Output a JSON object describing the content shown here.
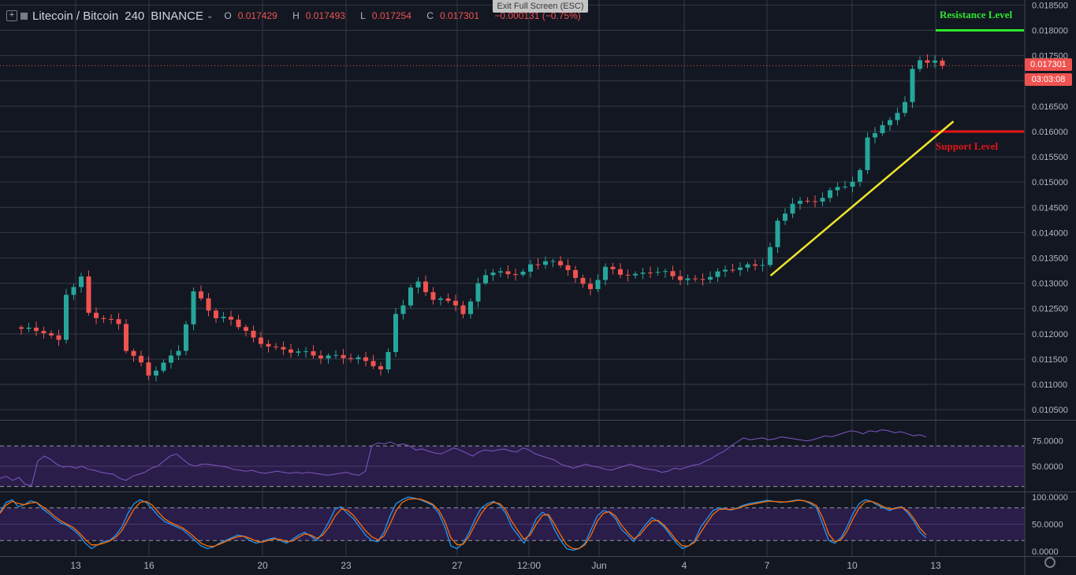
{
  "header": {
    "symbol": "Litecoin / Bitcoin",
    "interval": "240",
    "exchange": "BINANCE",
    "ohlc": [
      {
        "key": "O",
        "value": "0.017429"
      },
      {
        "key": "H",
        "value": "0.017493"
      },
      {
        "key": "L",
        "value": "0.017254"
      },
      {
        "key": "C",
        "value": "0.017301"
      }
    ],
    "change": "−0.000131 (−0.75%)"
  },
  "overlay": {
    "exit_fullscreen": "Exit Full Screen (ESC)"
  },
  "annotations": {
    "resistance": "Resistance Level",
    "support": "Support Level"
  },
  "price_badge": {
    "price": "0.017301",
    "countdown": "03:03:08"
  },
  "colors": {
    "background": "#131722",
    "grid": "#363a45",
    "up": "#26a69a",
    "down": "#ef5350",
    "trendline": "#f0e62b",
    "resistance": "#2ee62e",
    "support": "#e41515",
    "rsi": "#7e57c2",
    "rsi_band": "#2a1d4a",
    "stoch_k": "#2196f3",
    "stoch_d": "#ff6d00"
  },
  "chart_data": [
    {
      "type": "candlestick",
      "title": "Litecoin / Bitcoin",
      "ylim": [
        0.0103,
        0.0186
      ],
      "y_ticks": [
        "0.010500",
        "0.011000",
        "0.011500",
        "0.012000",
        "0.012500",
        "0.013000",
        "0.013500",
        "0.014000",
        "0.014500",
        "0.015000",
        "0.015500",
        "0.016000",
        "0.016500",
        "0.017000",
        "0.017500",
        "0.018000",
        "0.018500"
      ],
      "x_ticks": [
        "13",
        "16",
        "20",
        "23",
        "27",
        "12:00",
        "Jun",
        "4",
        "7",
        "10",
        "13"
      ],
      "close_path": [
        [
          0,
          0.0121
        ],
        [
          3,
          0.01205
        ],
        [
          5,
          0.01185
        ],
        [
          6,
          0.0128
        ],
        [
          8,
          0.0131
        ],
        [
          9,
          0.0124
        ],
        [
          11,
          0.0123
        ],
        [
          13,
          0.0122
        ],
        [
          14,
          0.0117
        ],
        [
          16,
          0.0114
        ],
        [
          17,
          0.0112
        ],
        [
          19,
          0.0114
        ],
        [
          21,
          0.0117
        ],
        [
          22,
          0.0122
        ],
        [
          23,
          0.0128
        ],
        [
          24,
          0.0127
        ],
        [
          26,
          0.0123
        ],
        [
          28,
          0.0123
        ],
        [
          31,
          0.0119
        ],
        [
          34,
          0.0117
        ],
        [
          37,
          0.01165
        ],
        [
          40,
          0.01155
        ],
        [
          43,
          0.01155
        ],
        [
          45,
          0.0115
        ],
        [
          47,
          0.0114
        ],
        [
          48,
          0.0113
        ],
        [
          49,
          0.0116
        ],
        [
          50,
          0.0124
        ],
        [
          51,
          0.0126
        ],
        [
          52,
          0.0129
        ],
        [
          53,
          0.013
        ],
        [
          55,
          0.0127
        ],
        [
          58,
          0.0126
        ],
        [
          59,
          0.0124
        ],
        [
          60,
          0.0126
        ],
        [
          61,
          0.013
        ],
        [
          62,
          0.0132
        ],
        [
          65,
          0.0132
        ],
        [
          67,
          0.0132
        ],
        [
          68,
          0.01335
        ],
        [
          70,
          0.01345
        ],
        [
          73,
          0.0133
        ],
        [
          74,
          0.0131
        ],
        [
          75,
          0.01295
        ],
        [
          76,
          0.0129
        ],
        [
          77,
          0.0131
        ],
        [
          78,
          0.0133
        ],
        [
          80,
          0.0132
        ],
        [
          82,
          0.01315
        ],
        [
          84,
          0.01325
        ],
        [
          86,
          0.0132
        ],
        [
          88,
          0.0131
        ],
        [
          90,
          0.01305
        ],
        [
          91,
          0.0131
        ],
        [
          93,
          0.0132
        ],
        [
          95,
          0.0133
        ],
        [
          98,
          0.01335
        ],
        [
          99,
          0.0134
        ],
        [
          100,
          0.0137
        ],
        [
          101,
          0.0142
        ],
        [
          102,
          0.0144
        ],
        [
          103,
          0.0146
        ],
        [
          105,
          0.0146
        ],
        [
          107,
          0.0147
        ],
        [
          109,
          0.0149
        ],
        [
          111,
          0.015
        ],
        [
          112,
          0.0152
        ],
        [
          113,
          0.0159
        ],
        [
          114,
          0.016
        ],
        [
          116,
          0.0162
        ],
        [
          117,
          0.0164
        ],
        [
          118,
          0.0166
        ],
        [
          119,
          0.0172
        ],
        [
          120,
          0.0174
        ],
        [
          122,
          0.0174
        ],
        [
          123,
          0.0173
        ]
      ],
      "last_close": 0.017301,
      "resistance": 0.018,
      "support": 0.016,
      "trendline": [
        [
          99,
          0.01315
        ],
        [
          123,
          0.0162
        ]
      ]
    },
    {
      "type": "line",
      "title": "RSI",
      "ylim": [
        25,
        95
      ],
      "y_ticks": [
        "75.0000",
        "50.0000"
      ],
      "levels": [
        70,
        30
      ],
      "series": [
        {
          "values": [
            38,
            40,
            36,
            39,
            32,
            31,
            55,
            60,
            57,
            52,
            49,
            50,
            48,
            50,
            47,
            46,
            44,
            43,
            42,
            38,
            36,
            40,
            42,
            44,
            48,
            50,
            55,
            60,
            62,
            57,
            52,
            50,
            52,
            52,
            51,
            50,
            49,
            47,
            46,
            45,
            46,
            44,
            43,
            44,
            45,
            44,
            43,
            44,
            43,
            44,
            43,
            42,
            41,
            42,
            43,
            44,
            42,
            41,
            45,
            70,
            73,
            72,
            74,
            71,
            72,
            70,
            66,
            67,
            65,
            63,
            62,
            65,
            68,
            66,
            63,
            60,
            64,
            66,
            65,
            66,
            67,
            65,
            64,
            68,
            66,
            62,
            60,
            58,
            56,
            52,
            50,
            48,
            50,
            52,
            50,
            49,
            47,
            46,
            48,
            50,
            52,
            50,
            48,
            47,
            46,
            44,
            45,
            48,
            47,
            49,
            51,
            52,
            55,
            58,
            62,
            65,
            70,
            74,
            78,
            76,
            77,
            78,
            76,
            77,
            79,
            78,
            77,
            76,
            75,
            76,
            78,
            80,
            79,
            81,
            83,
            85,
            84,
            82,
            85,
            84,
            86,
            85,
            83,
            84,
            82,
            80,
            81,
            79
          ]
        }
      ]
    },
    {
      "type": "line",
      "title": "Stochastic",
      "ylim": [
        0,
        100
      ],
      "y_ticks": [
        "100.0000",
        "50.0000",
        "0.0000"
      ],
      "levels": [
        80,
        20
      ],
      "series": [
        {
          "values": [
            72,
            90,
            95,
            82,
            86,
            93,
            90,
            78,
            70,
            60,
            52,
            48,
            40,
            30,
            15,
            5,
            12,
            18,
            20,
            30,
            45,
            70,
            88,
            95,
            90,
            78,
            65,
            55,
            50,
            45,
            40,
            30,
            20,
            10,
            5,
            8,
            15,
            20,
            25,
            30,
            28,
            20,
            15,
            18,
            22,
            25,
            20,
            15,
            22,
            30,
            35,
            28,
            20,
            35,
            55,
            78,
            82,
            70,
            60,
            45,
            30,
            20,
            18,
            35,
            65,
            88,
            95,
            100,
            98,
            95,
            90,
            85,
            70,
            45,
            10,
            5,
            15,
            35,
            60,
            80,
            88,
            92,
            85,
            70,
            45,
            30,
            15,
            35,
            60,
            72,
            65,
            40,
            20,
            5,
            2,
            5,
            15,
            40,
            65,
            75,
            72,
            60,
            40,
            30,
            18,
            35,
            50,
            62,
            55,
            45,
            30,
            15,
            5,
            10,
            20,
            45,
            60,
            75,
            80,
            78,
            76,
            80,
            85,
            88,
            90,
            92,
            94,
            92,
            90,
            91,
            93,
            95,
            93,
            88,
            80,
            50,
            20,
            15,
            25,
            45,
            70,
            88,
            95,
            92,
            85,
            80,
            75,
            80,
            82,
            70,
            55,
            35,
            25
          ]
        },
        {
          "values": [
            70,
            85,
            92,
            88,
            86,
            89,
            90,
            82,
            74,
            64,
            56,
            50,
            44,
            34,
            22,
            12,
            12,
            15,
            19,
            26,
            38,
            58,
            78,
            90,
            92,
            85,
            72,
            60,
            53,
            48,
            43,
            35,
            25,
            15,
            10,
            9,
            13,
            18,
            23,
            27,
            28,
            24,
            19,
            17,
            20,
            23,
            22,
            18,
            19,
            26,
            32,
            30,
            24,
            30,
            45,
            65,
            78,
            76,
            66,
            52,
            38,
            27,
            21,
            28,
            50,
            75,
            90,
            96,
            97,
            96,
            92,
            87,
            76,
            55,
            25,
            12,
            13,
            28,
            50,
            70,
            84,
            90,
            88,
            76,
            55,
            38,
            22,
            30,
            50,
            66,
            68,
            50,
            30,
            12,
            5,
            5,
            12,
            30,
            55,
            70,
            73,
            65,
            48,
            35,
            23,
            30,
            44,
            56,
            57,
            48,
            35,
            20,
            10,
            10,
            17,
            35,
            52,
            68,
            77,
            78,
            77,
            79,
            83,
            86,
            88,
            90,
            92,
            92,
            91,
            91,
            92,
            94,
            93,
            90,
            84,
            62,
            32,
            18,
            21,
            37,
            60,
            80,
            91,
            92,
            88,
            82,
            78,
            79,
            81,
            74,
            60,
            42,
            30
          ]
        }
      ]
    }
  ]
}
